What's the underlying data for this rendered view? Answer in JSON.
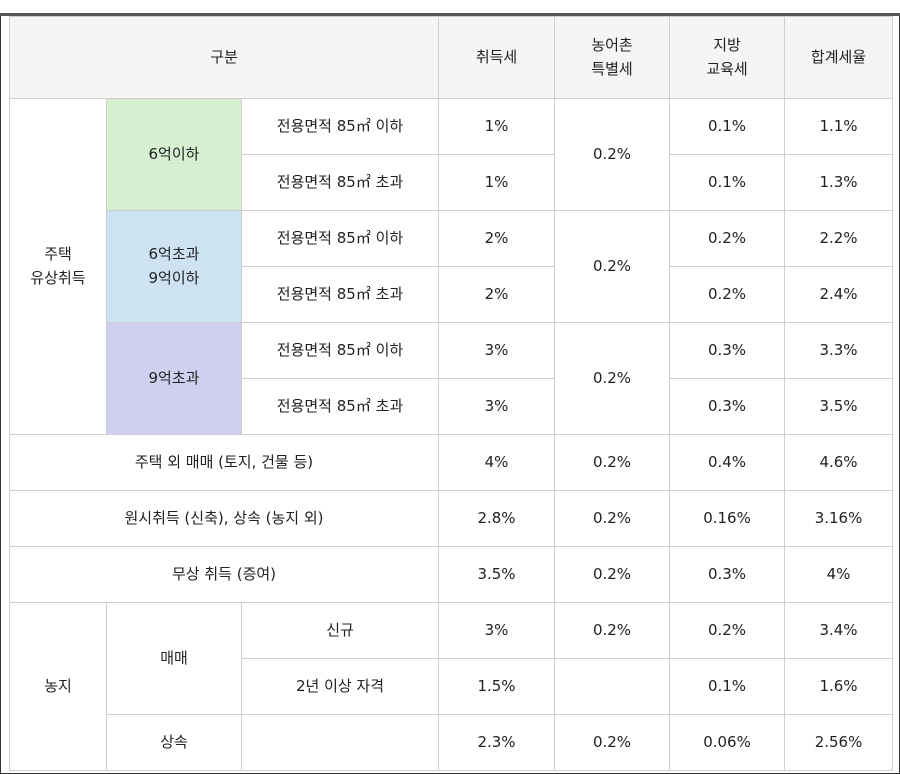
{
  "header": {
    "category": "구분",
    "acquisition_tax": "취득세",
    "rural_tax_line1": "농어촌",
    "rural_tax_line2": "특별세",
    "education_tax_line1": "지방",
    "education_tax_line2": "교육세",
    "total": "합계세율"
  },
  "housing": {
    "label_line1": "주택",
    "label_line2": "유상취득",
    "tiers": [
      {
        "label_line1": "6억이하",
        "label_line2": "",
        "rows": [
          {
            "area": "전용면적 85㎡ 이하",
            "acq": "1%",
            "rural": "",
            "edu": "0.1%",
            "total": "1.1%"
          },
          {
            "area": "전용면적 85㎡ 초과",
            "acq": "1%",
            "rural": "0.2%",
            "edu": "0.1%",
            "total": "1.3%"
          }
        ]
      },
      {
        "label_line1": "6억초과",
        "label_line2": "9억이하",
        "rows": [
          {
            "area": "전용면적 85㎡ 이하",
            "acq": "2%",
            "rural": "",
            "edu": "0.2%",
            "total": "2.2%"
          },
          {
            "area": "전용면적 85㎡ 초과",
            "acq": "2%",
            "rural": "0.2%",
            "edu": "0.2%",
            "total": "2.4%"
          }
        ]
      },
      {
        "label_line1": "9억초과",
        "label_line2": "",
        "rows": [
          {
            "area": "전용면적 85㎡ 이하",
            "acq": "3%",
            "rural": "",
            "edu": "0.3%",
            "total": "3.3%"
          },
          {
            "area": "전용면적 85㎡ 초과",
            "acq": "3%",
            "rural": "0.2%",
            "edu": "0.3%",
            "total": "3.5%"
          }
        ]
      }
    ]
  },
  "other_rows": [
    {
      "label": "주택 외 매매 (토지, 건물 등)",
      "acq": "4%",
      "rural": "0.2%",
      "edu": "0.4%",
      "total": "4.6%"
    },
    {
      "label": "원시취득 (신축), 상속 (농지 외)",
      "acq": "2.8%",
      "rural": "0.2%",
      "edu": "0.16%",
      "total": "3.16%"
    },
    {
      "label": "무상 취득 (증여)",
      "acq": "3.5%",
      "rural": "0.2%",
      "edu": "0.3%",
      "total": "4%"
    }
  ],
  "farmland": {
    "label": "농지",
    "sale_label": "매매",
    "sale_rows": [
      {
        "sub": "신규",
        "acq": "3%",
        "rural": "0.2%",
        "edu": "0.2%",
        "total": "3.4%"
      },
      {
        "sub": "2년 이상 자격",
        "acq": "1.5%",
        "rural": "",
        "edu": "0.1%",
        "total": "1.6%"
      }
    ],
    "inherit": {
      "label": "상속",
      "sub": "",
      "acq": "2.3%",
      "rural": "0.2%",
      "edu": "0.06%",
      "total": "2.56%"
    }
  },
  "colors": {
    "tier1": "#d5efd0",
    "tier2": "#cde3f2",
    "tier3": "#cfcfef",
    "header_bg": "#f5f5f5",
    "border": "#cfcfcf"
  }
}
